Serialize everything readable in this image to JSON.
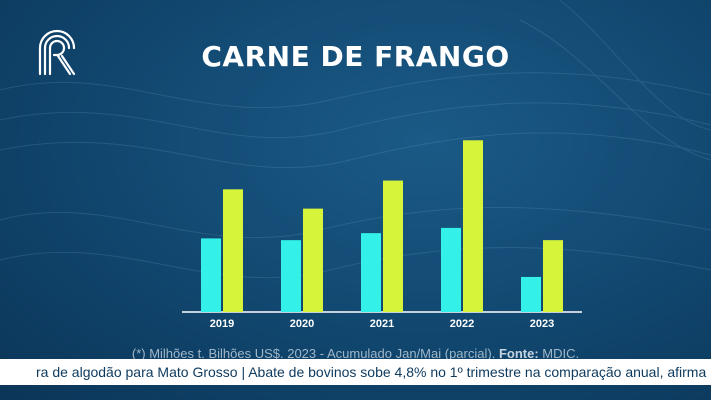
{
  "title": "CARNE DE FRANGO",
  "footnote": {
    "text": "(*) Milhões t. Bilhões US$. 2023 - Acumulado Jan/Mai (parcial).",
    "source_label": "Fonte:",
    "source_value": "MDIC."
  },
  "ticker": {
    "text": "ra de algodão para Mato Grosso | Abate de bovinos sobe 4,8% no 1º trimestre na comparação anual, afirma IB("
  },
  "colors": {
    "series_a": "#33f0e8",
    "series_b": "#d6f53a",
    "background": "#124a73"
  },
  "logo": {
    "icon": "canal-rural-logo-icon"
  },
  "chart_data": {
    "type": "bar",
    "categories": [
      "2019",
      "2020",
      "2021",
      "2022",
      "2023"
    ],
    "series": [
      {
        "values": [
          4.2,
          4.1,
          4.5,
          4.8,
          2.0
        ]
      },
      {
        "values": [
          7.0,
          5.9,
          7.5,
          9.8,
          4.1
        ]
      }
    ],
    "ylim": [
      0,
      10.5
    ],
    "grid": false,
    "legend": "none",
    "xlabel": "",
    "ylabel": ""
  }
}
